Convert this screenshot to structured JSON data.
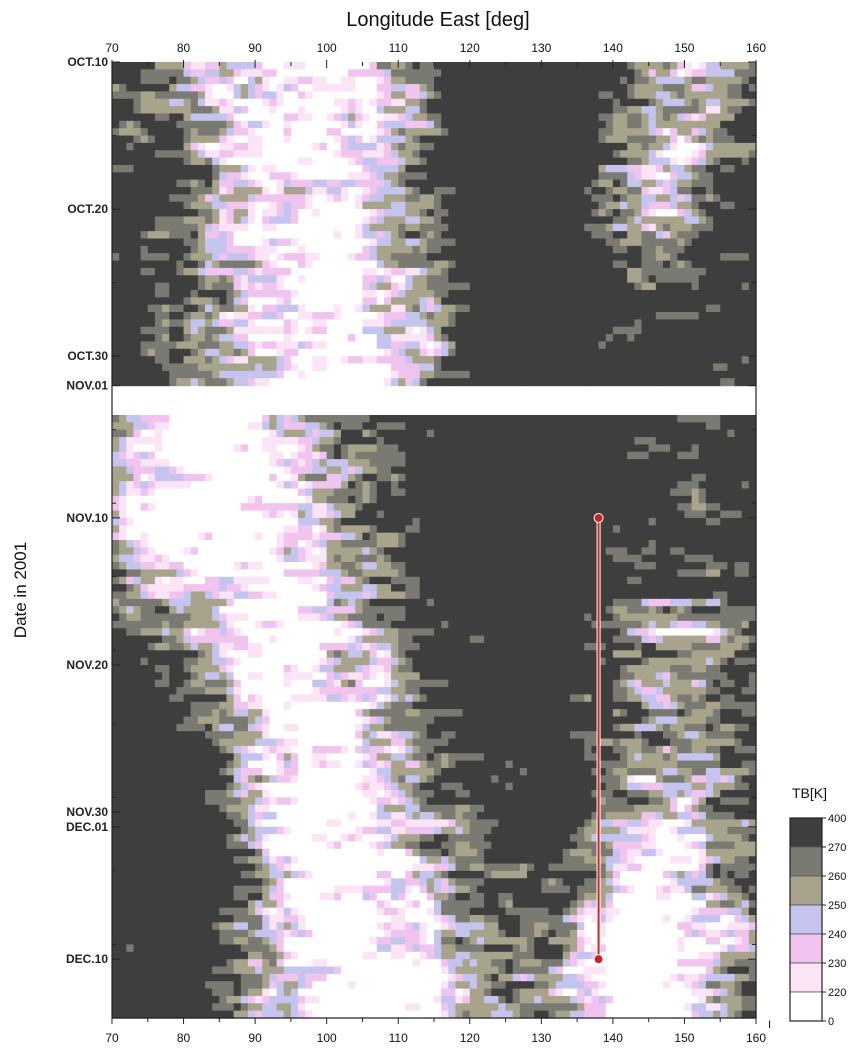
{
  "chart_data": {
    "type": "heatmap",
    "title": "",
    "xlabel": "Longitude East [deg]",
    "ylabel": "Date in 2001",
    "x_ticks": [
      "70",
      "80",
      "90",
      "100",
      "110",
      "120",
      "130",
      "140",
      "150",
      "160"
    ],
    "xlim": [
      70,
      160
    ],
    "date_ticks": [
      {
        "label": "OCT.10",
        "day": 0
      },
      {
        "label": "OCT.20",
        "day": 10
      },
      {
        "label": "OCT.30",
        "day": 20
      },
      {
        "label": "NOV.01",
        "day": 22
      },
      {
        "label": "NOV.10",
        "day": 31
      },
      {
        "label": "NOV.20",
        "day": 41
      },
      {
        "label": "NOV.30",
        "day": 51
      },
      {
        "label": "DEC.01",
        "day": 52
      },
      {
        "label": "DEC.10",
        "day": 61
      }
    ],
    "ylim_days": [
      0,
      65
    ],
    "data_gap_days": [
      22,
      24
    ],
    "colorbar": {
      "title": "TB[K]",
      "levels": [
        "400",
        "270",
        "260",
        "250",
        "240",
        "230",
        "220",
        "0"
      ],
      "colors": [
        "#3e3e3e",
        "#7a7a72",
        "#a8a48c",
        "#c4c4ee",
        "#f0c4ee",
        "#fbe4f5",
        "#ffffff"
      ]
    },
    "marker_line": {
      "lon": 138,
      "start_day": 31,
      "end_day": 61,
      "color": "#cc2222"
    },
    "corner_label": "I"
  }
}
